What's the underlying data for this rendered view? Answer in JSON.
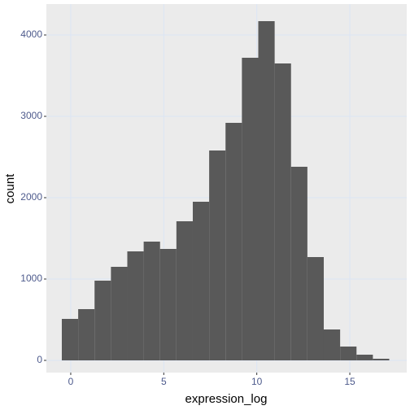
{
  "chart_data": {
    "type": "histogram",
    "x_label": "expression_log",
    "y_label": "count",
    "bins": [
      -0.48,
      0.4,
      1.28,
      2.16,
      3.04,
      3.92,
      4.8,
      5.68,
      6.56,
      7.44,
      8.32,
      9.2,
      10.08,
      10.96,
      11.84,
      12.72,
      13.6,
      14.48,
      15.36,
      16.24,
      17.12
    ],
    "values": [
      510,
      630,
      980,
      1150,
      1340,
      1460,
      1370,
      1710,
      1950,
      2580,
      2920,
      3720,
      4170,
      3650,
      2380,
      1270,
      380,
      170,
      70,
      20
    ],
    "color": "#595959",
    "xlim": [
      -1.31,
      18.06
    ],
    "xticks": [
      0,
      5,
      10,
      15
    ],
    "ylim": [
      -150,
      4380
    ],
    "yticks": [
      0,
      1000,
      2000,
      3000,
      4000
    ],
    "grid": true
  }
}
